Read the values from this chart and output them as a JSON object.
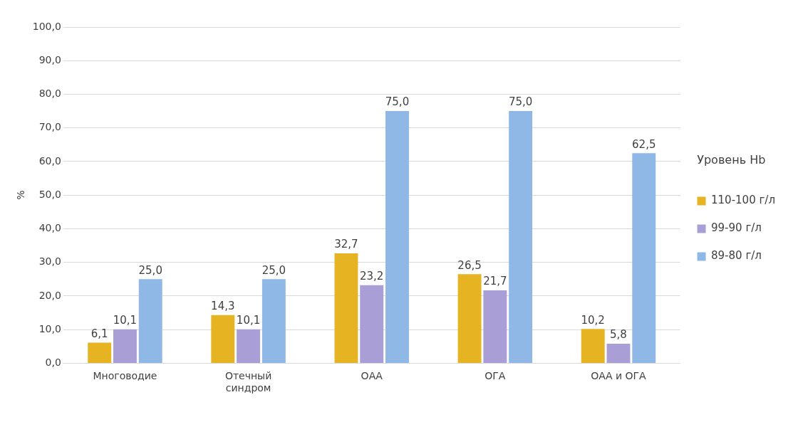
{
  "chart_data": {
    "type": "bar",
    "ylabel": "%",
    "legend_title": "Уровень Hb",
    "legend": "right",
    "categories": [
      "Многоводие",
      "Отечный синдром",
      "ОАА",
      "ОГА",
      "ОАА и ОГА"
    ],
    "series": [
      {
        "name": "110-100 г/л",
        "color": "#e6b422",
        "values": [
          6.1,
          14.3,
          32.7,
          26.5,
          10.2
        ],
        "value_labels": [
          "6,1",
          "14,3",
          "32,7",
          "26,5",
          "10,2"
        ]
      },
      {
        "name": "99-90 г/л",
        "color": "#a99fd6",
        "values": [
          10.1,
          10.1,
          23.2,
          21.7,
          5.8
        ],
        "value_labels": [
          "10,1",
          "10,1",
          "23,2",
          "21,7",
          "5,8"
        ]
      },
      {
        "name": "89-80 г/л",
        "color": "#8fb8e6",
        "values": [
          25.0,
          25.0,
          75.0,
          75.0,
          62.5
        ],
        "value_labels": [
          "25,0",
          "25,0",
          "75,0",
          "75,0",
          "62,5"
        ]
      }
    ],
    "ylim": [
      0,
      100
    ],
    "yticks": [
      {
        "value": 0,
        "label": "0,0"
      },
      {
        "value": 10,
        "label": "10,0"
      },
      {
        "value": 20,
        "label": "20,0"
      },
      {
        "value": 30,
        "label": "30,0"
      },
      {
        "value": 40,
        "label": "40,0"
      },
      {
        "value": 50,
        "label": "50,0"
      },
      {
        "value": 60,
        "label": "60,0"
      },
      {
        "value": 70,
        "label": "70,0"
      },
      {
        "value": 80,
        "label": "80,0"
      },
      {
        "value": 90,
        "label": "90,0"
      },
      {
        "value": 100,
        "label": "100,0"
      }
    ],
    "grid": "y"
  }
}
